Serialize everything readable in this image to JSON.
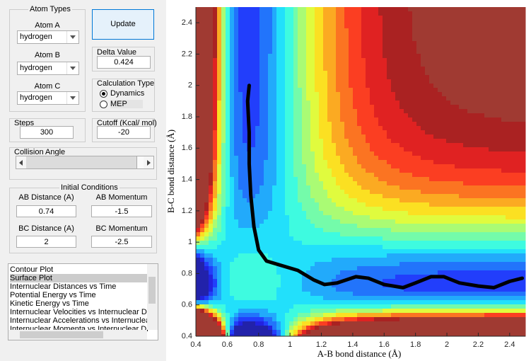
{
  "atom_types": {
    "title": "Atom Types",
    "atoms": [
      {
        "label": "Atom A",
        "value": "hydrogen"
      },
      {
        "label": "Atom B",
        "value": "hydrogen"
      },
      {
        "label": "Atom C",
        "value": "hydrogen"
      }
    ]
  },
  "update_button": "Update",
  "delta_value": {
    "label": "Delta Value",
    "value": "0.424"
  },
  "calculation_type": {
    "title": "Calculation Type",
    "options": [
      "Dynamics",
      "MEP"
    ],
    "selected": 0
  },
  "steps": {
    "label": "Steps",
    "value": "300"
  },
  "cutoff": {
    "label": "Cutoff (Kcal/ mol)",
    "value": "-20"
  },
  "collision_angle": {
    "label": "Collision Angle"
  },
  "initial_conditions": {
    "title": "Initial Conditions",
    "fields": [
      {
        "label": "AB Distance (A)",
        "value": "0.74"
      },
      {
        "label": "AB Momentum",
        "value": "-1.5"
      },
      {
        "label": "BC Distance (A)",
        "value": "2"
      },
      {
        "label": "BC Momentum",
        "value": "-2.5"
      }
    ]
  },
  "plot_list": {
    "items": [
      "Contour Plot",
      "Surface Plot",
      "Internuclear Distances vs Time",
      "Potential Energy vs Time",
      "Kinetic Energy vs Time",
      "Internuclear Velocities vs Internuclear Distance",
      "Internuclear Accelerations vs Internuclear Distance",
      "Internuclear Momenta vs Internuclear Distance"
    ],
    "selected": 1
  },
  "chart_data": {
    "type": "line",
    "x_label": "A-B bond distance (Å)",
    "y_label": "B-C bond distance (Å)",
    "xlim": [
      0.4,
      2.5
    ],
    "ylim": [
      0.4,
      2.5
    ],
    "xticks": [
      0.4,
      0.6,
      0.8,
      1,
      1.2,
      1.4,
      1.6,
      1.8,
      2,
      2.2,
      2.4
    ],
    "yticks": [
      0.4,
      0.6,
      0.8,
      1,
      1.2,
      1.4,
      1.6,
      1.8,
      2,
      2.2,
      2.4
    ],
    "x": [
      0.74,
      0.73,
      0.74,
      0.74,
      0.75,
      0.77,
      0.8,
      0.85,
      0.95,
      1.05,
      1.15,
      1.22,
      1.3,
      1.42,
      1.5,
      1.6,
      1.72,
      1.8,
      1.9,
      1.98,
      2.08,
      2.2,
      2.3,
      2.4,
      2.48
    ],
    "series": [
      {
        "color": "#000000",
        "values": [
          2.0,
          1.9,
          1.7,
          1.5,
          1.3,
          1.1,
          0.95,
          0.88,
          0.85,
          0.82,
          0.76,
          0.73,
          0.74,
          0.78,
          0.77,
          0.73,
          0.71,
          0.74,
          0.78,
          0.78,
          0.74,
          0.72,
          0.71,
          0.75,
          0.77
        ]
      }
    ]
  }
}
